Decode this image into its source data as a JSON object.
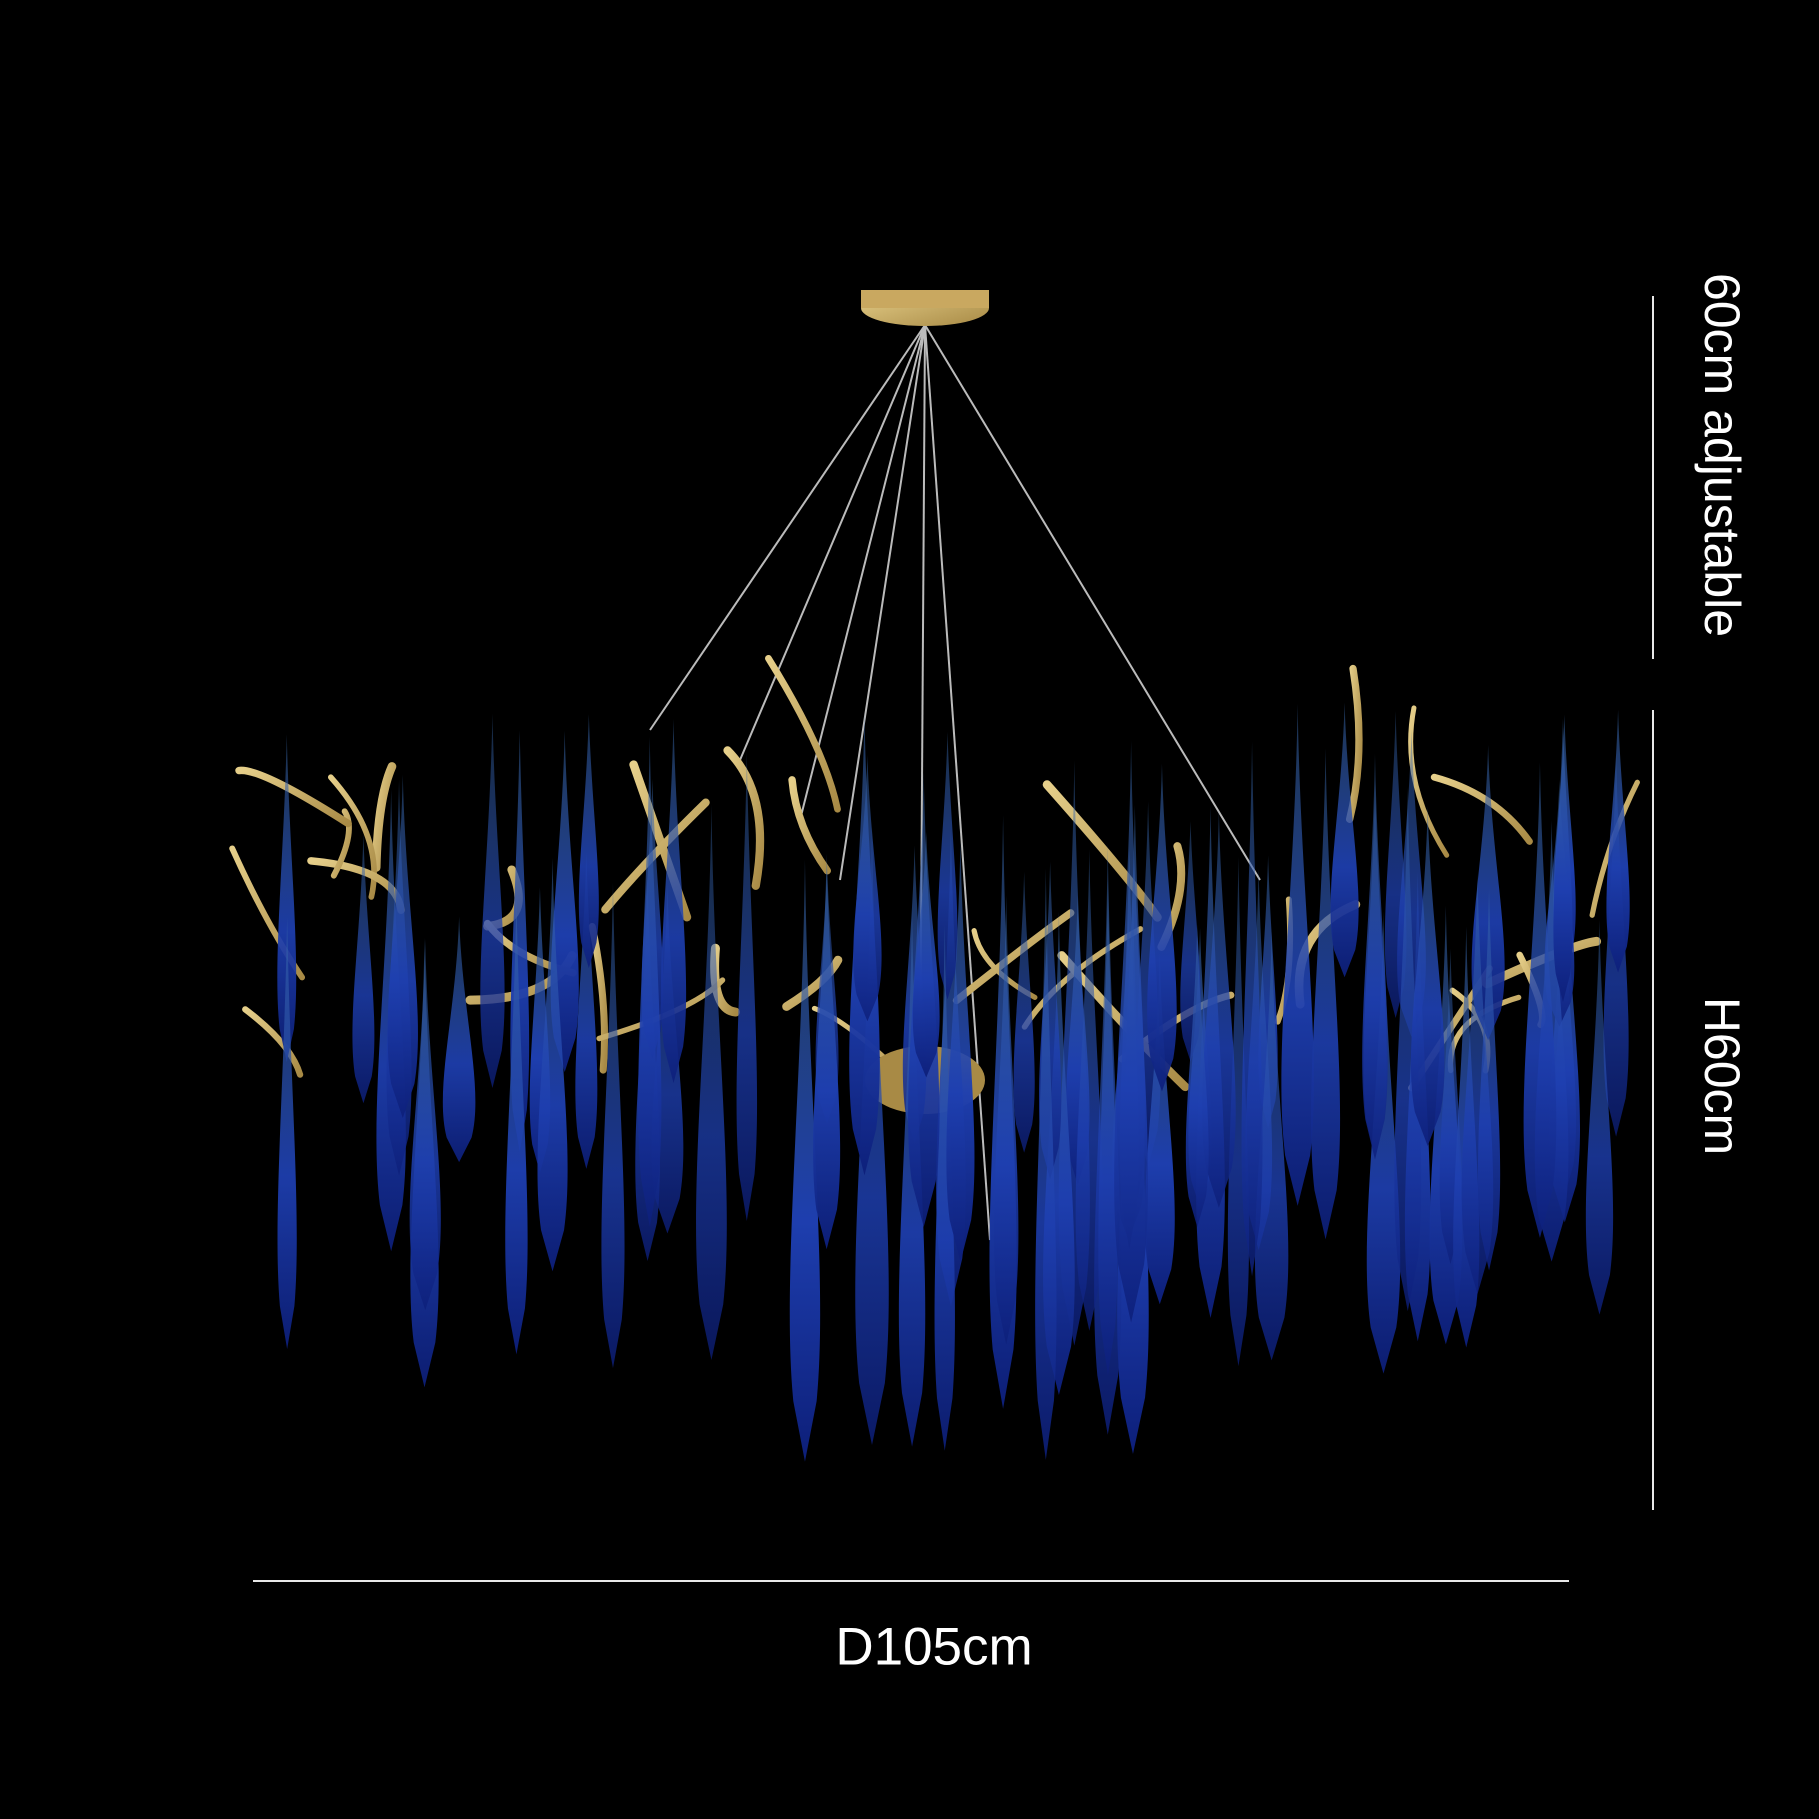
{
  "dimensions": {
    "chain_length": "60cm adjustable",
    "height": "H60cm",
    "diameter": "D105cm"
  },
  "colors": {
    "background": "#000000",
    "glass_drops": "#1f3fa8",
    "branches": "#c9a860",
    "annotation": "#ffffff"
  }
}
